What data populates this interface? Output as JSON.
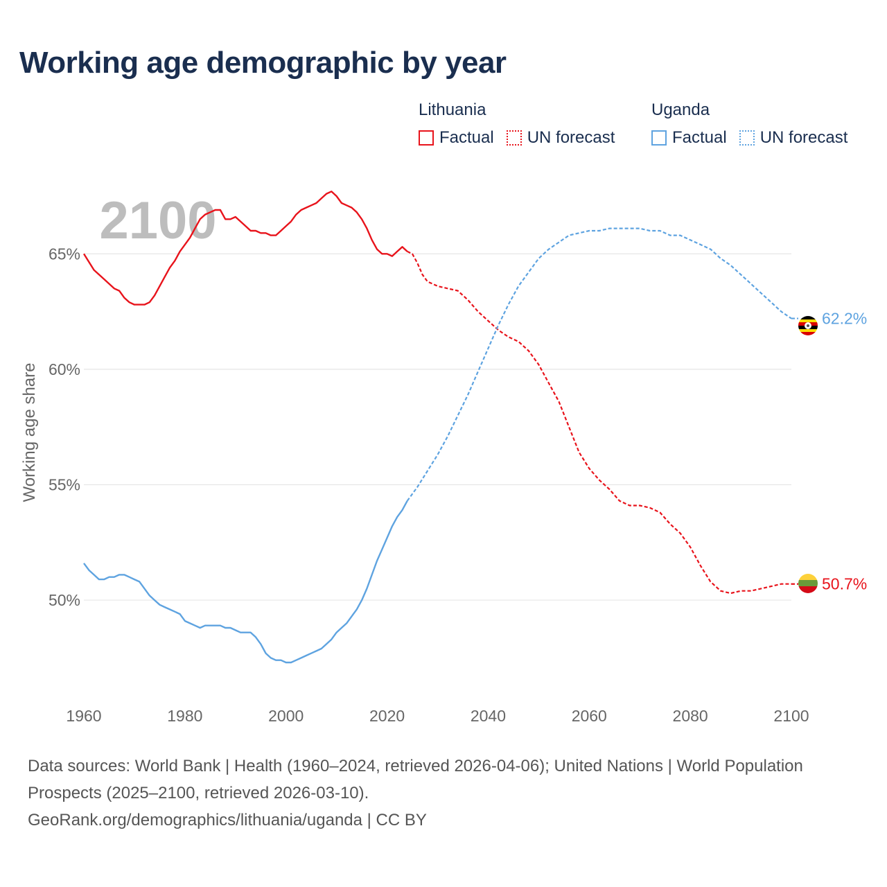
{
  "title": "Working age demographic by year",
  "legend": {
    "groups": [
      {
        "name": "Lithuania",
        "color": "#e8131b",
        "factual": "Factual",
        "forecast": "UN forecast"
      },
      {
        "name": "Uganda",
        "color": "#5ea3e0",
        "factual": "Factual",
        "forecast": "UN forecast"
      }
    ]
  },
  "year_label": "2100",
  "footer": {
    "sources": "Data sources: World Bank | Health (1960–2024, retrieved 2026-04-06); United Nations | World Population Prospects (2025–2100, retrieved 2026-03-10).",
    "credit": "GeoRank.org/demographics/lithuania/uganda | CC BY"
  },
  "chart_data": {
    "type": "line",
    "title": "Working age demographic by year",
    "xlabel": "",
    "ylabel": "Working age share",
    "xlim": [
      1960,
      2100
    ],
    "ylim": [
      45.5,
      69
    ],
    "x_ticks": [
      1960,
      1980,
      2000,
      2020,
      2040,
      2060,
      2080,
      2100
    ],
    "x_tick_labels": [
      "1960",
      "1980",
      "2000",
      "2020",
      "2040",
      "2060",
      "2080",
      "2100"
    ],
    "y_ticks": [
      50,
      55,
      60,
      65
    ],
    "y_tick_labels": [
      "50%",
      "55%",
      "60%",
      "65%"
    ],
    "grid": true,
    "series": [
      {
        "name": "Lithuania",
        "color": "#e8131b",
        "end_label": "50.7%",
        "factual": {
          "x": [
            1960,
            1962,
            1964,
            1966,
            1967,
            1968,
            1969,
            1970,
            1971,
            1972,
            1973,
            1974,
            1975,
            1976,
            1977,
            1978,
            1979,
            1980,
            1981,
            1982,
            1983,
            1984,
            1985,
            1986,
            1987,
            1988,
            1989,
            1990,
            1991,
            1992,
            1993,
            1994,
            1995,
            1996,
            1997,
            1998,
            1999,
            2000,
            2001,
            2002,
            2003,
            2004,
            2005,
            2006,
            2007,
            2008,
            2009,
            2010,
            2011,
            2012,
            2013,
            2014,
            2015,
            2016,
            2017,
            2018,
            2019,
            2020,
            2021,
            2022,
            2023,
            2024
          ],
          "y": [
            65.0,
            64.3,
            63.9,
            63.5,
            63.4,
            63.1,
            62.9,
            62.8,
            62.8,
            62.8,
            62.9,
            63.2,
            63.6,
            64.0,
            64.4,
            64.7,
            65.1,
            65.4,
            65.7,
            66.1,
            66.5,
            66.7,
            66.8,
            66.9,
            66.9,
            66.5,
            66.5,
            66.6,
            66.4,
            66.2,
            66.0,
            66.0,
            65.9,
            65.9,
            65.8,
            65.8,
            66.0,
            66.2,
            66.4,
            66.7,
            66.9,
            67.0,
            67.1,
            67.2,
            67.4,
            67.6,
            67.7,
            67.5,
            67.2,
            67.1,
            67.0,
            66.8,
            66.5,
            66.1,
            65.6,
            65.2,
            65.0,
            65.0,
            64.9,
            65.1,
            65.3,
            65.1
          ]
        },
        "forecast": {
          "x": [
            2024,
            2025,
            2026,
            2027,
            2028,
            2030,
            2032,
            2034,
            2036,
            2038,
            2040,
            2042,
            2044,
            2046,
            2048,
            2050,
            2052,
            2054,
            2056,
            2058,
            2060,
            2062,
            2064,
            2066,
            2068,
            2070,
            2072,
            2074,
            2076,
            2078,
            2080,
            2082,
            2084,
            2086,
            2088,
            2090,
            2092,
            2094,
            2096,
            2098,
            2100
          ],
          "y": [
            65.1,
            65.0,
            64.6,
            64.1,
            63.8,
            63.6,
            63.5,
            63.4,
            63.0,
            62.5,
            62.1,
            61.7,
            61.4,
            61.2,
            60.8,
            60.2,
            59.4,
            58.6,
            57.5,
            56.4,
            55.7,
            55.2,
            54.8,
            54.3,
            54.1,
            54.1,
            54.0,
            53.8,
            53.3,
            52.9,
            52.3,
            51.5,
            50.8,
            50.4,
            50.3,
            50.4,
            50.4,
            50.5,
            50.6,
            50.7,
            50.7
          ]
        }
      },
      {
        "name": "Uganda",
        "color": "#5ea3e0",
        "end_label": "62.2%",
        "factual": {
          "x": [
            1960,
            1961,
            1962,
            1963,
            1964,
            1965,
            1966,
            1967,
            1968,
            1969,
            1970,
            1971,
            1972,
            1973,
            1974,
            1975,
            1976,
            1977,
            1978,
            1979,
            1980,
            1981,
            1982,
            1983,
            1984,
            1985,
            1986,
            1987,
            1988,
            1989,
            1990,
            1991,
            1992,
            1993,
            1994,
            1995,
            1996,
            1997,
            1998,
            1999,
            2000,
            2001,
            2002,
            2003,
            2004,
            2005,
            2006,
            2007,
            2008,
            2009,
            2010,
            2011,
            2012,
            2013,
            2014,
            2015,
            2016,
            2017,
            2018,
            2019,
            2020,
            2021,
            2022,
            2023,
            2024
          ],
          "y": [
            51.6,
            51.3,
            51.1,
            50.9,
            50.9,
            51.0,
            51.0,
            51.1,
            51.1,
            51.0,
            50.9,
            50.8,
            50.5,
            50.2,
            50.0,
            49.8,
            49.7,
            49.6,
            49.5,
            49.4,
            49.1,
            49.0,
            48.9,
            48.8,
            48.9,
            48.9,
            48.9,
            48.9,
            48.8,
            48.8,
            48.7,
            48.6,
            48.6,
            48.6,
            48.4,
            48.1,
            47.7,
            47.5,
            47.4,
            47.4,
            47.3,
            47.3,
            47.4,
            47.5,
            47.6,
            47.7,
            47.8,
            47.9,
            48.1,
            48.3,
            48.6,
            48.8,
            49.0,
            49.3,
            49.6,
            50.0,
            50.5,
            51.1,
            51.7,
            52.2,
            52.7,
            53.2,
            53.6,
            53.9,
            54.3
          ]
        },
        "forecast": {
          "x": [
            2024,
            2026,
            2028,
            2030,
            2032,
            2034,
            2036,
            2038,
            2040,
            2042,
            2044,
            2046,
            2048,
            2050,
            2052,
            2054,
            2056,
            2058,
            2060,
            2062,
            2064,
            2066,
            2068,
            2070,
            2072,
            2074,
            2076,
            2078,
            2080,
            2082,
            2084,
            2086,
            2088,
            2090,
            2092,
            2094,
            2096,
            2098,
            2100
          ],
          "y": [
            54.3,
            54.9,
            55.6,
            56.3,
            57.1,
            58.0,
            58.9,
            59.9,
            60.9,
            61.9,
            62.8,
            63.6,
            64.2,
            64.8,
            65.2,
            65.5,
            65.8,
            65.9,
            66.0,
            66.0,
            66.1,
            66.1,
            66.1,
            66.1,
            66.0,
            66.0,
            65.8,
            65.8,
            65.6,
            65.4,
            65.2,
            64.8,
            64.5,
            64.1,
            63.7,
            63.3,
            62.9,
            62.5,
            62.2
          ]
        }
      }
    ]
  }
}
